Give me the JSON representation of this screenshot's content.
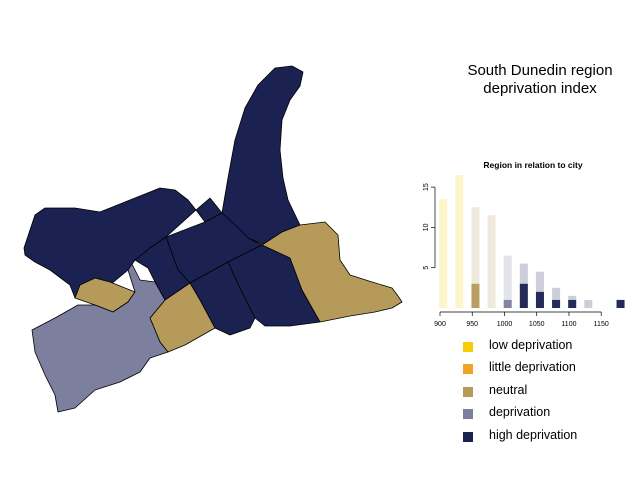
{
  "title": {
    "line1": "South Dunedin region",
    "line2": "deprivation index"
  },
  "colors": {
    "low": "#f5cd00",
    "little": "#f1a325",
    "neutral": "#b69a59",
    "deprivation": "#7c7f9e",
    "high": "#1b2251"
  },
  "map": {
    "regions": [
      {
        "name": "north-harbour-area",
        "category": "high"
      },
      {
        "name": "northwest-area",
        "category": "high"
      },
      {
        "name": "central-north-area",
        "category": "high"
      },
      {
        "name": "central-block-area",
        "category": "high"
      },
      {
        "name": "central-strip-area",
        "category": "high"
      },
      {
        "name": "south-central-area",
        "category": "high"
      },
      {
        "name": "southeast-area",
        "category": "high"
      },
      {
        "name": "northeast-area",
        "category": "neutral"
      },
      {
        "name": "west-small-area",
        "category": "neutral"
      },
      {
        "name": "south-middle-area",
        "category": "neutral"
      },
      {
        "name": "southwest-area",
        "category": "deprivation"
      }
    ]
  },
  "chart_data": {
    "type": "bar",
    "title": "Region in relation to city",
    "xlabel": "",
    "ylabel": "",
    "xlim": [
      900,
      1190
    ],
    "ylim": [
      0,
      16.5
    ],
    "x_ticks": [
      900,
      950,
      1000,
      1050,
      1100,
      1150
    ],
    "x_tick_labels": [
      "900",
      "950",
      "1000",
      "1050",
      "1100",
      "1150"
    ],
    "y_ticks": [
      5,
      10,
      15
    ],
    "y_tick_labels": [
      "5",
      "10",
      "15"
    ],
    "bars": [
      {
        "x": 905,
        "count": 13.5,
        "category": "low",
        "highlight": 0
      },
      {
        "x": 930,
        "count": 16.5,
        "category": "low",
        "highlight": 0
      },
      {
        "x": 955,
        "count": 12.5,
        "category": "neutral",
        "highlight": 3
      },
      {
        "x": 980,
        "count": 11.5,
        "category": "neutral",
        "highlight": 0
      },
      {
        "x": 1005,
        "count": 6.5,
        "category": "deprivation",
        "highlight": 1
      },
      {
        "x": 1030,
        "count": 5.5,
        "category": "high",
        "highlight": 3
      },
      {
        "x": 1055,
        "count": 4.5,
        "category": "high",
        "highlight": 2
      },
      {
        "x": 1080,
        "count": 2.5,
        "category": "high",
        "highlight": 1
      },
      {
        "x": 1105,
        "count": 1.5,
        "category": "high",
        "highlight": 1
      },
      {
        "x": 1130,
        "count": 1.0,
        "category": "high",
        "highlight": 0
      },
      {
        "x": 1180,
        "count": 1.0,
        "category": "high",
        "highlight": 1
      }
    ],
    "grid": false,
    "legend_position": "below"
  },
  "legend": {
    "items": [
      {
        "label": "low deprivation",
        "category": "low"
      },
      {
        "label": "little deprivation",
        "category": "little"
      },
      {
        "label": "neutral",
        "category": "neutral"
      },
      {
        "label": "deprivation",
        "category": "deprivation"
      },
      {
        "label": "high deprivation",
        "category": "high"
      }
    ]
  }
}
